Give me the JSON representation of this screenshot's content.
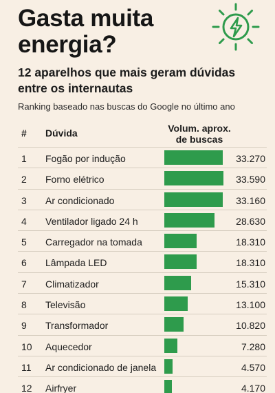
{
  "header": {
    "title_line1": "Gasta muita",
    "title_line2": "energia?",
    "subtitle": "12 aparelhos que mais geram dúvidas entre os internautas",
    "note": "Ranking baseado nas buscas do Google no último ano",
    "icon": "lightning-bolt-icon",
    "accent_color": "#2e9b4c"
  },
  "table": {
    "col_rank": "#",
    "col_question": "Dúvida",
    "col_volume_line1": "Volum. aprox.",
    "col_volume_line2": "de buscas"
  },
  "chart_data": {
    "type": "bar",
    "orientation": "horizontal",
    "bar_color": "#2e9b4c",
    "ranks": [
      "1",
      "2",
      "3",
      "4",
      "5",
      "6",
      "7",
      "8",
      "9",
      "10",
      "11",
      "12"
    ],
    "categories": [
      "Fogão por indução",
      "Forno elétrico",
      "Ar condicionado",
      "Ventilador ligado 24 h",
      "Carregador na tomada",
      "Lâmpada LED",
      "Climatizador",
      "Televisão",
      "Transformador",
      "Aquecedor",
      "Ar condicionado de janela",
      "Airfryer"
    ],
    "labels": [
      "33.270",
      "33.590",
      "33.160",
      "28.630",
      "18.310",
      "18.310",
      "15.310",
      "13.100",
      "10.820",
      "7.280",
      "4.570",
      "4.170"
    ],
    "values": [
      33270,
      33590,
      33160,
      28630,
      18310,
      18310,
      15310,
      13100,
      10820,
      7280,
      4570,
      4170
    ],
    "xlim": [
      0,
      33590
    ]
  }
}
